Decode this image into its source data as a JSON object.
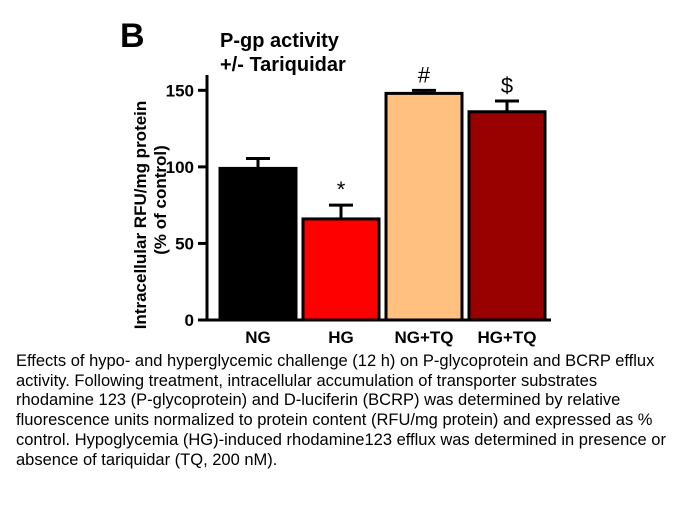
{
  "panel_label": "B",
  "chart_data": {
    "type": "bar",
    "title": "P-gp activity",
    "subtitle": "+/- Tariquidar",
    "ylabel": [
      "Intracellular RFU/mg protein",
      "(% of control)"
    ],
    "xlabel": "",
    "categories": [
      "NG",
      "HG",
      "NG+TQ",
      "HG+TQ"
    ],
    "values": [
      99,
      66,
      148,
      136
    ],
    "errors": [
      6.5,
      9,
      2,
      7
    ],
    "annotations": [
      "",
      "*",
      "#",
      "$"
    ],
    "colors": [
      "#000000",
      "#ff0000",
      "#ffc080",
      "#990000"
    ],
    "ylim": [
      0,
      160
    ],
    "yticks": [
      0,
      50,
      100,
      150
    ],
    "grid": false,
    "legend": "none"
  },
  "caption": "Effects of hypo- and hyperglycemic challenge (12 h) on P-glycoprotein and BCRP efflux activity.  Following treatment, intracellular accumulation of transporter substrates rhodamine 123 (P-glycoprotein) and D-luciferin (BCRP) was determined by relative fluorescence units normalized to protein content (RFU/mg protein) and expressed as % control. Hypoglycemia (HG)-induced rhodamine123 efflux was determined in presence or absence of tariquidar (TQ, 200 nM)."
}
